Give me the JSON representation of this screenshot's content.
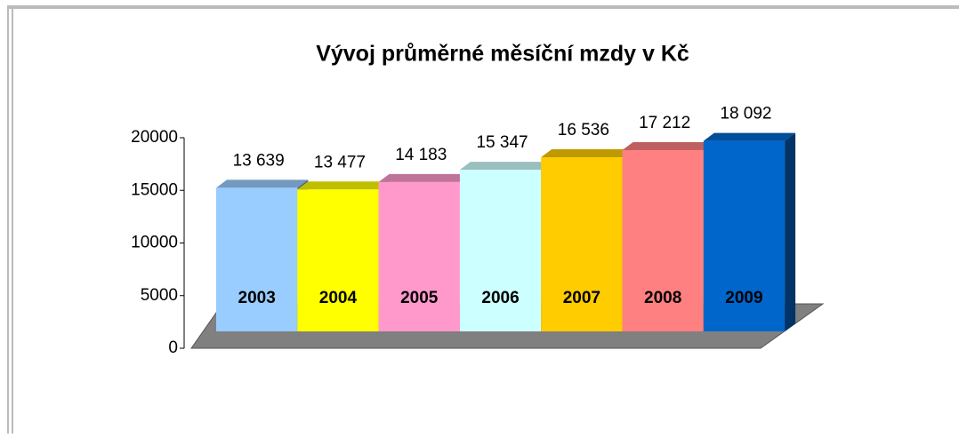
{
  "chart_data": {
    "type": "bar3d",
    "title": "Vývoj průměrné měsíční mzdy v Kč",
    "categories": [
      "2003",
      "2004",
      "2005",
      "2006",
      "2007",
      "2008",
      "2009"
    ],
    "values": [
      13639,
      13477,
      14183,
      15347,
      16536,
      17212,
      18092
    ],
    "value_labels": [
      "13 639",
      "13 477",
      "14 183",
      "15 347",
      "16 536",
      "17 212",
      "18 092"
    ],
    "colors": [
      "#99ccff",
      "#ffff00",
      "#ff99cc",
      "#ccffff",
      "#ffcc00",
      "#ff8080",
      "#0066cc"
    ],
    "ylim": [
      0,
      20000
    ],
    "yticks": [
      0,
      5000,
      10000,
      15000,
      20000
    ]
  }
}
